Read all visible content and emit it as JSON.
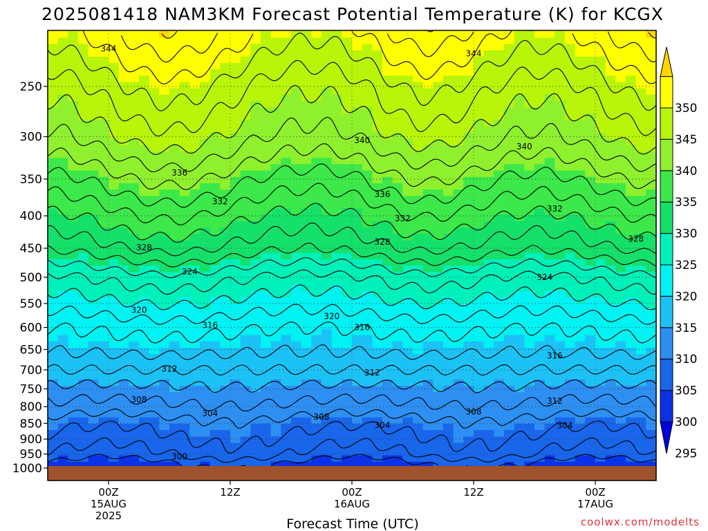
{
  "title": "2025081418 NAM3KM Forecast Potential Temperature (K) for KCGX",
  "credit": "coolwx.com/modelts",
  "chart_data": {
    "type": "heatmap",
    "title": "2025081418 NAM3KM Forecast Potential Temperature (K) for KCGX",
    "xlabel": "Forecast Time (UTC)",
    "ylabel": "",
    "y_axis": {
      "scale": "pressure (log, inverted)",
      "range": [
        1000,
        200
      ],
      "ticks": [
        250,
        300,
        350,
        400,
        450,
        500,
        550,
        600,
        650,
        700,
        750,
        800,
        850,
        900,
        950,
        1000
      ]
    },
    "x_axis": {
      "range_hours": [
        -6,
        54
      ],
      "ticks": [
        {
          "hour": 0,
          "lines": [
            "00Z",
            "15AUG",
            "2025"
          ]
        },
        {
          "hour": 12,
          "lines": [
            "12Z"
          ]
        },
        {
          "hour": 24,
          "lines": [
            "00Z",
            "16AUG"
          ]
        },
        {
          "hour": 36,
          "lines": [
            "12Z"
          ]
        },
        {
          "hour": 48,
          "lines": [
            "00Z",
            "17AUG"
          ]
        }
      ]
    },
    "grid": true,
    "colorbar": {
      "levels": [
        295,
        300,
        305,
        310,
        315,
        320,
        325,
        330,
        335,
        340,
        345,
        350
      ],
      "colors": [
        "#0000e0",
        "#0a33e6",
        "#1966eb",
        "#2e8ff2",
        "#1cc2f5",
        "#00f2f2",
        "#00f0ba",
        "#15e06a",
        "#3ce84a",
        "#8ff02e",
        "#b8f50a",
        "#ffff00",
        "#ffd500"
      ]
    },
    "ground_color": "#a0522d",
    "contour_labels": [
      {
        "value": "344",
        "hour": 0,
        "p": 218
      },
      {
        "value": "344",
        "hour": 36,
        "p": 222
      },
      {
        "value": "340",
        "hour": 25,
        "p": 304
      },
      {
        "value": "340",
        "hour": 41,
        "p": 311
      },
      {
        "value": "336",
        "hour": 7,
        "p": 342
      },
      {
        "value": "336",
        "hour": 27,
        "p": 370
      },
      {
        "value": "332",
        "hour": 11,
        "p": 380
      },
      {
        "value": "332",
        "hour": 29,
        "p": 404
      },
      {
        "value": "332",
        "hour": 44,
        "p": 390
      },
      {
        "value": "328",
        "hour": 3.5,
        "p": 449
      },
      {
        "value": "328",
        "hour": 27,
        "p": 440
      },
      {
        "value": "328",
        "hour": 52,
        "p": 435
      },
      {
        "value": "324",
        "hour": 8,
        "p": 490
      },
      {
        "value": "324",
        "hour": 43,
        "p": 500
      },
      {
        "value": "320",
        "hour": 3,
        "p": 563
      },
      {
        "value": "320",
        "hour": 22,
        "p": 576
      },
      {
        "value": "316",
        "hour": 10,
        "p": 595
      },
      {
        "value": "316",
        "hour": 25,
        "p": 600
      },
      {
        "value": "316",
        "hour": 44,
        "p": 665
      },
      {
        "value": "312",
        "hour": 6,
        "p": 697
      },
      {
        "value": "312",
        "hour": 26,
        "p": 707
      },
      {
        "value": "312",
        "hour": 44,
        "p": 784
      },
      {
        "value": "308",
        "hour": 3,
        "p": 780
      },
      {
        "value": "308",
        "hour": 21,
        "p": 830
      },
      {
        "value": "308",
        "hour": 36,
        "p": 815
      },
      {
        "value": "304",
        "hour": 10,
        "p": 820
      },
      {
        "value": "304",
        "hour": 27,
        "p": 856
      },
      {
        "value": "304",
        "hour": 45,
        "p": 857
      },
      {
        "value": "300",
        "hour": 7,
        "p": 960
      }
    ]
  }
}
